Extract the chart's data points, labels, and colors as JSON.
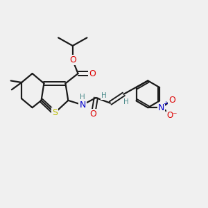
{
  "background_color": "#f0f0f0",
  "bond_color": "#1a1a1a",
  "atom_colors": {
    "O": "#dd0000",
    "N": "#0000cc",
    "S": "#bbbb00",
    "H": "#4a8a8a",
    "C": "#1a1a1a"
  },
  "figsize": [
    3.0,
    3.0
  ],
  "dpi": 100
}
